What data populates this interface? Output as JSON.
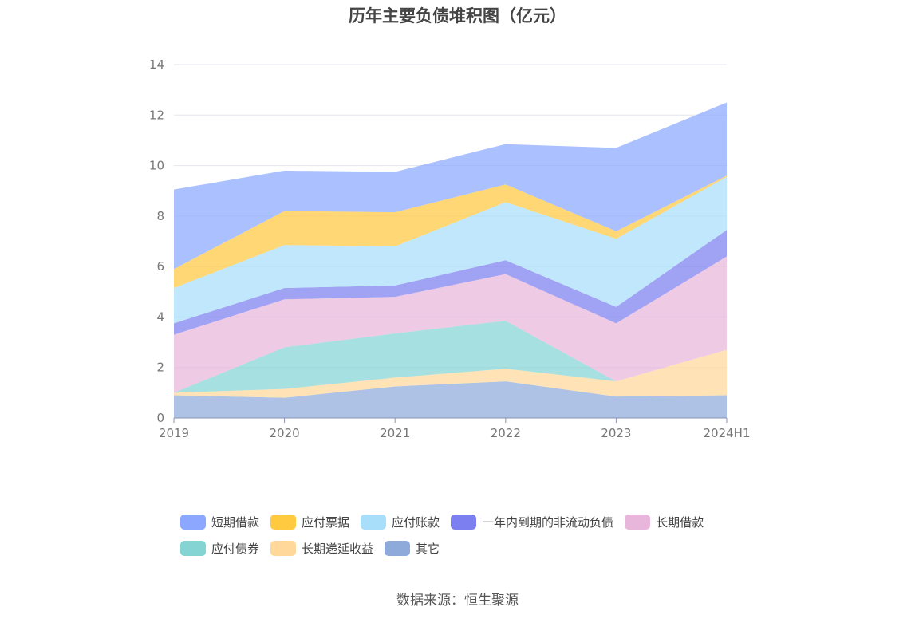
{
  "chart_data": {
    "type": "area",
    "stacked": true,
    "title": "历年主要负债堆积图（亿元）",
    "categories": [
      "2019",
      "2020",
      "2021",
      "2022",
      "2023",
      "2024H1"
    ],
    "ylim": [
      0,
      14
    ],
    "yticks": [
      0,
      2,
      4,
      6,
      8,
      10,
      12,
      14
    ],
    "grid": true,
    "legend_position": "bottom",
    "series": [
      {
        "name": "其它",
        "color": "#8eaadb",
        "values": [
          0.9,
          0.8,
          1.25,
          1.45,
          0.85,
          0.9
        ]
      },
      {
        "name": "长期递延收益",
        "color": "#ffd89a",
        "values": [
          0.1,
          0.35,
          0.35,
          0.5,
          0.6,
          1.8
        ]
      },
      {
        "name": "应付债券",
        "color": "#85d4d4",
        "values": [
          0.0,
          1.65,
          1.75,
          1.9,
          0.0,
          0.0
        ]
      },
      {
        "name": "长期借款",
        "color": "#e8b5db",
        "values": [
          2.3,
          1.9,
          1.45,
          1.85,
          2.3,
          3.7
        ]
      },
      {
        "name": "一年内到期的非流动负债",
        "color": "#7b7ff0",
        "values": [
          0.45,
          0.45,
          0.45,
          0.55,
          0.65,
          1.05
        ]
      },
      {
        "name": "应付账款",
        "color": "#a8defa",
        "values": [
          1.4,
          1.7,
          1.55,
          2.3,
          2.7,
          2.1
        ]
      },
      {
        "name": "应付票据",
        "color": "#ffc940",
        "values": [
          0.75,
          1.35,
          1.35,
          0.7,
          0.3,
          0.05
        ]
      },
      {
        "name": "短期借款",
        "color": "#8ba7ff",
        "values": [
          3.15,
          1.6,
          1.6,
          1.6,
          3.3,
          2.9
        ]
      }
    ],
    "legend_order": [
      "短期借款",
      "应付票据",
      "应付账款",
      "一年内到期的非流动负债",
      "长期借款",
      "应付债券",
      "长期递延收益",
      "其它"
    ]
  },
  "source": "数据来源：恒生聚源"
}
